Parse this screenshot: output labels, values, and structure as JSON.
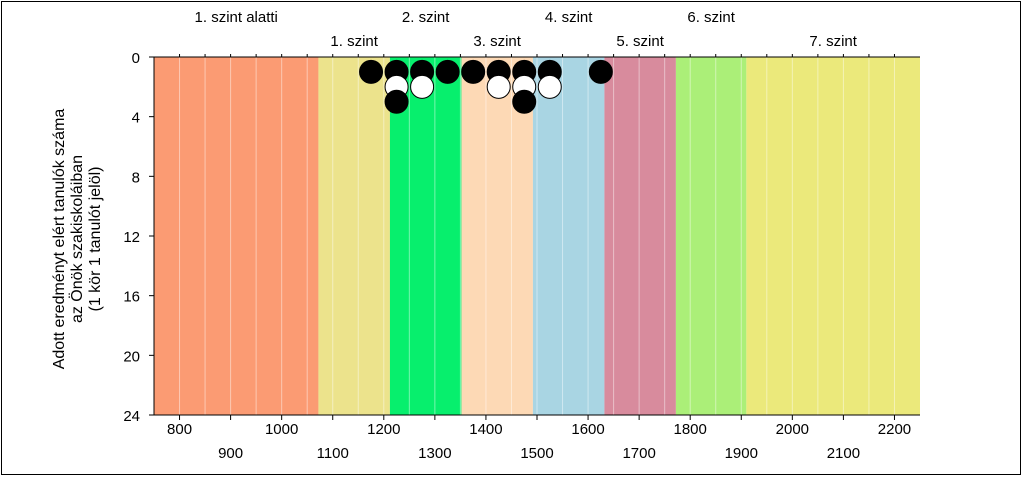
{
  "chart_data": {
    "type": "scatter",
    "ylabel_lines": [
      "Adott eredményt elért tanulók száma",
      "az Önök szakiskoláiban",
      "(1 kör 1 tanulót jelöl)"
    ],
    "x_range": [
      750,
      2250
    ],
    "y_range": [
      0,
      24
    ],
    "y_inverted": true,
    "x_ticks_upper": [
      800,
      1000,
      1200,
      1400,
      1600,
      1800,
      2000,
      2200
    ],
    "x_ticks_lower": [
      900,
      1100,
      1300,
      1500,
      1700,
      1900,
      2100
    ],
    "y_ticks": [
      0,
      4,
      8,
      12,
      16,
      20,
      24
    ],
    "minor_grid_step": 50,
    "bands": [
      {
        "label": "1. szint alatti",
        "from": 750,
        "to": 1072,
        "color": "#fb9b73",
        "label_row": "top"
      },
      {
        "label": "1. szint",
        "from": 1072,
        "to": 1212,
        "color": "#ece38c",
        "label_row": "bottom"
      },
      {
        "label": "2. szint",
        "from": 1212,
        "to": 1352,
        "color": "#07ef6d",
        "label_row": "top"
      },
      {
        "label": "3. szint",
        "from": 1352,
        "to": 1492,
        "color": "#fdd9b5",
        "label_row": "bottom"
      },
      {
        "label": "4. szint",
        "from": 1492,
        "to": 1632,
        "color": "#a9d5e3",
        "label_row": "top"
      },
      {
        "label": "5. szint",
        "from": 1632,
        "to": 1772,
        "color": "#d88b9d",
        "label_row": "bottom"
      },
      {
        "label": "6. szint",
        "from": 1772,
        "to": 1910,
        "color": "#abef78",
        "label_row": "top"
      },
      {
        "label": "7. szint",
        "from": 1910,
        "to": 2250,
        "color": "#ebe97b",
        "label_row": "bottom"
      }
    ],
    "points": [
      {
        "x": 1175,
        "y": 1,
        "fill": "#000000"
      },
      {
        "x": 1225,
        "y": 1,
        "fill": "#000000"
      },
      {
        "x": 1225,
        "y": 2,
        "fill": "#ffffff"
      },
      {
        "x": 1225,
        "y": 3,
        "fill": "#000000"
      },
      {
        "x": 1275,
        "y": 1,
        "fill": "#000000"
      },
      {
        "x": 1275,
        "y": 2,
        "fill": "#ffffff"
      },
      {
        "x": 1325,
        "y": 1,
        "fill": "#000000"
      },
      {
        "x": 1375,
        "y": 1,
        "fill": "#000000"
      },
      {
        "x": 1425,
        "y": 1,
        "fill": "#000000"
      },
      {
        "x": 1425,
        "y": 2,
        "fill": "#ffffff"
      },
      {
        "x": 1475,
        "y": 1,
        "fill": "#000000"
      },
      {
        "x": 1475,
        "y": 2,
        "fill": "#ffffff"
      },
      {
        "x": 1475,
        "y": 3,
        "fill": "#000000"
      },
      {
        "x": 1525,
        "y": 1,
        "fill": "#000000"
      },
      {
        "x": 1525,
        "y": 2,
        "fill": "#ffffff"
      },
      {
        "x": 1625,
        "y": 1,
        "fill": "#000000"
      }
    ]
  }
}
